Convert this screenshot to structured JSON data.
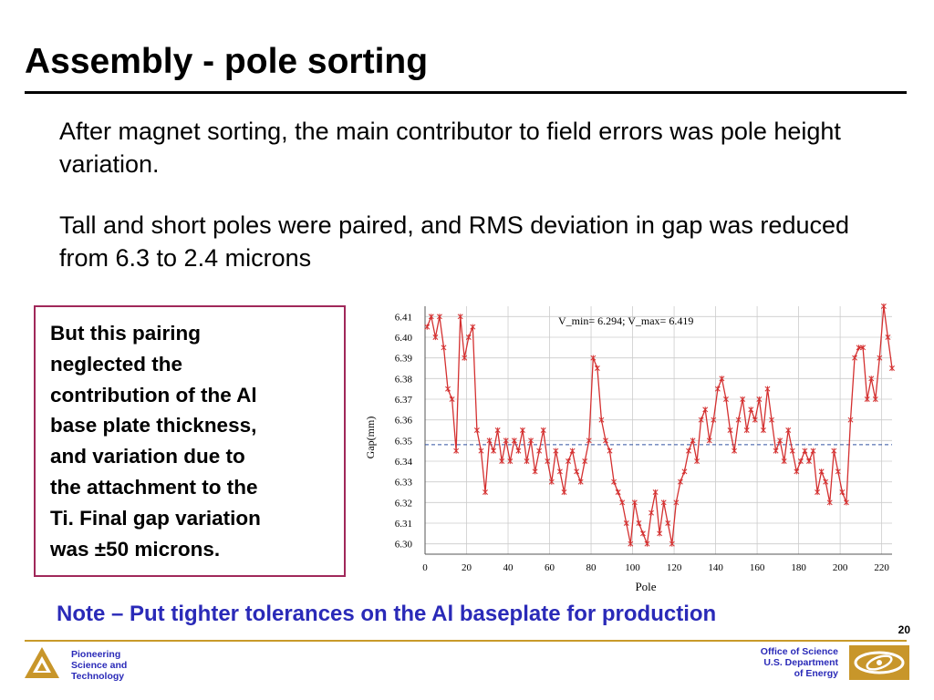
{
  "slide": {
    "title": "Assembly - pole sorting",
    "paragraphs": [
      "After magnet sorting, the main contributor to field errors was pole height variation.",
      "Tall and short poles were paired, and RMS deviation in gap was reduced from 6.3 to 2.4 microns"
    ],
    "callout": "But this pairing\nneglected the\ncontribution of the Al\nbase plate thickness,\nand variation due to\nthe attachment to the\nTi.  Final gap variation\nwas ±50 microns.",
    "note": "Note – Put tighter tolerances on the Al baseplate for production",
    "page_number": "20"
  },
  "footer": {
    "left_text": "Pioneering\nScience and\nTechnology",
    "right_text": "Office of Science\nU.S. Department\nof Energy",
    "colors": {
      "accent": "#2a2ab8",
      "rule": "#c89a2a",
      "logo": "#c8962a"
    }
  },
  "chart_data": {
    "type": "line",
    "annotation": "V_min= 6.294;  V_max= 6.419",
    "xlabel": "Pole",
    "ylabel": "Gap(mm)",
    "xlim": [
      0,
      225
    ],
    "ylim": [
      6.295,
      6.415
    ],
    "xticks": [
      0,
      20,
      40,
      60,
      80,
      100,
      120,
      140,
      160,
      180,
      200,
      220
    ],
    "yticks": [
      6.3,
      6.31,
      6.32,
      6.33,
      6.34,
      6.35,
      6.36,
      6.37,
      6.38,
      6.39,
      6.4,
      6.41
    ],
    "grid": true,
    "mean_line": 6.348,
    "colors": {
      "series": "#d43030",
      "mean": "#3050a0",
      "grid": "#cccccc"
    },
    "series": [
      {
        "x": [
          1,
          3,
          5,
          7,
          9,
          11,
          13,
          15,
          17,
          19,
          21,
          23,
          25,
          27,
          29,
          31,
          33,
          35,
          37,
          39,
          41,
          43,
          45,
          47,
          49,
          51,
          53,
          55,
          57,
          59,
          61,
          63,
          65,
          67,
          69,
          71,
          73,
          75,
          77,
          79,
          81,
          83,
          85,
          87,
          89,
          91,
          93,
          95,
          97,
          99,
          101,
          103,
          105,
          107,
          109,
          111,
          113,
          115,
          117,
          119,
          121,
          123,
          125,
          127,
          129,
          131,
          133,
          135,
          137,
          139,
          141,
          143,
          145,
          147,
          149,
          151,
          153,
          155,
          157,
          159,
          161,
          163,
          165,
          167,
          169,
          171,
          173,
          175,
          177,
          179,
          181,
          183,
          185,
          187,
          189,
          191,
          193,
          195,
          197,
          199,
          201,
          203,
          205,
          207,
          209,
          211,
          213,
          215,
          217,
          219,
          221,
          223,
          225
        ],
        "y": [
          6.405,
          6.41,
          6.4,
          6.41,
          6.395,
          6.375,
          6.37,
          6.345,
          6.41,
          6.39,
          6.4,
          6.405,
          6.355,
          6.345,
          6.325,
          6.35,
          6.345,
          6.355,
          6.34,
          6.35,
          6.34,
          6.35,
          6.345,
          6.355,
          6.34,
          6.35,
          6.335,
          6.345,
          6.355,
          6.34,
          6.33,
          6.345,
          6.335,
          6.325,
          6.34,
          6.345,
          6.335,
          6.33,
          6.34,
          6.35,
          6.39,
          6.385,
          6.36,
          6.35,
          6.345,
          6.33,
          6.325,
          6.32,
          6.31,
          6.3,
          6.32,
          6.31,
          6.305,
          6.3,
          6.315,
          6.325,
          6.305,
          6.32,
          6.31,
          6.3,
          6.32,
          6.33,
          6.335,
          6.345,
          6.35,
          6.34,
          6.36,
          6.365,
          6.35,
          6.36,
          6.375,
          6.38,
          6.37,
          6.355,
          6.345,
          6.36,
          6.37,
          6.355,
          6.365,
          6.36,
          6.37,
          6.355,
          6.375,
          6.36,
          6.345,
          6.35,
          6.34,
          6.355,
          6.345,
          6.335,
          6.34,
          6.345,
          6.34,
          6.345,
          6.325,
          6.335,
          6.33,
          6.32,
          6.345,
          6.335,
          6.325,
          6.32,
          6.36,
          6.39,
          6.395,
          6.395,
          6.37,
          6.38,
          6.37,
          6.39,
          6.415,
          6.4,
          6.385
        ]
      }
    ]
  }
}
